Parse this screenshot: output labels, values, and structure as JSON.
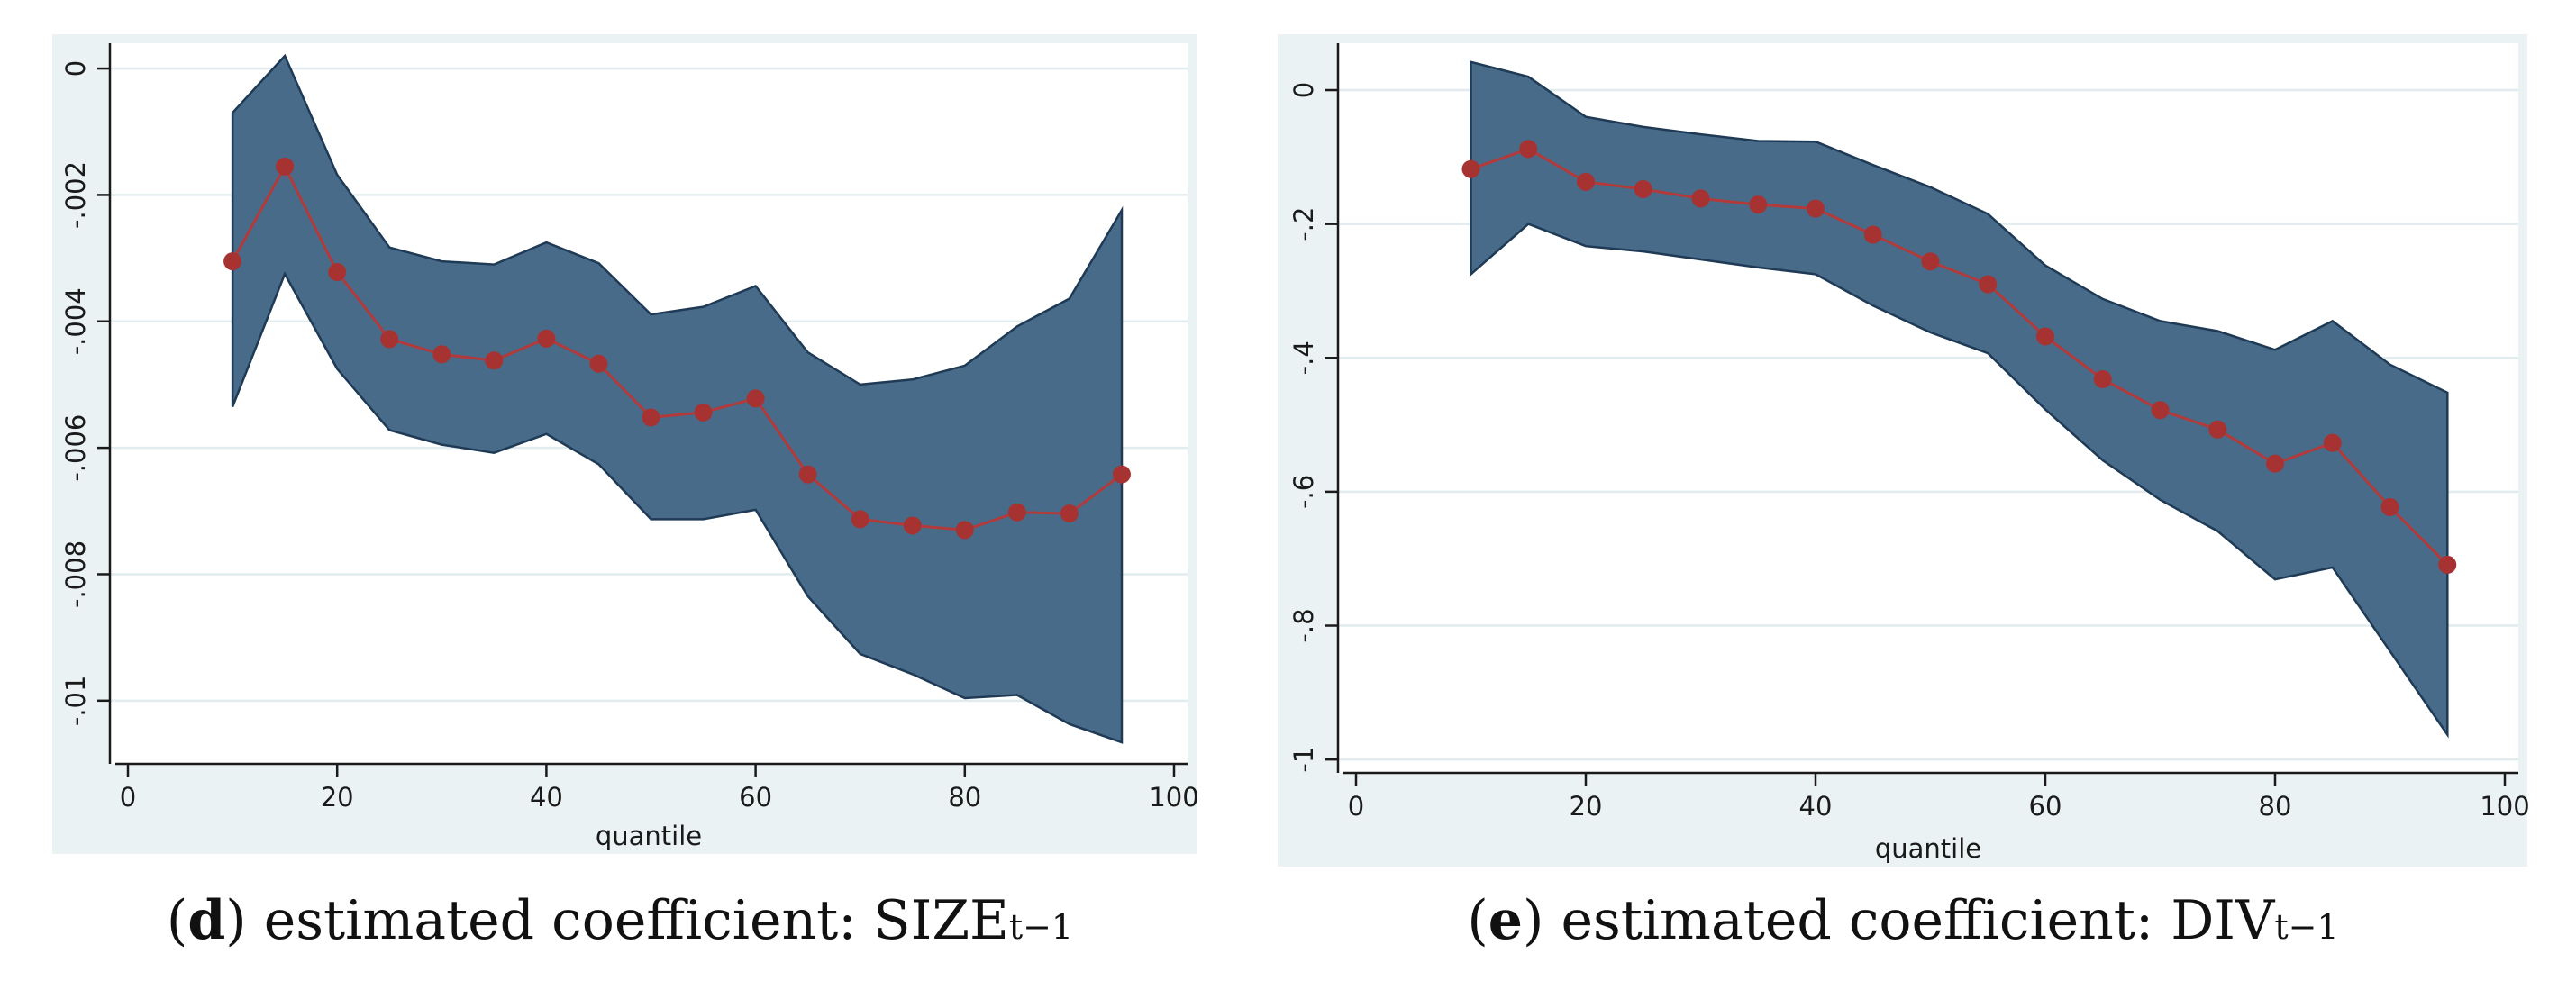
{
  "colors": {
    "panel_bg": "#eaf2f3",
    "plot_bg": "#ffffff",
    "grid": "#e2ecee",
    "band_fill": "#486b8a",
    "band_edge": "#1f3a55",
    "line": "#b33a3a",
    "marker": "#a73232",
    "axis": "#1a1a1a"
  },
  "chart_data": [
    {
      "type": "line",
      "panel": "d",
      "xlabel": "quantile",
      "ylabel": "",
      "xlim": [
        0,
        100
      ],
      "ylim": [
        -0.011,
        0.0004
      ],
      "x_ticks": [
        0,
        20,
        40,
        60,
        80,
        100
      ],
      "x_tick_labels": [
        "0",
        "20",
        "40",
        "60",
        "80",
        "100"
      ],
      "y_ticks": [
        0,
        -0.002,
        -0.004,
        -0.006,
        -0.008,
        -0.01
      ],
      "y_tick_labels": [
        "0",
        "-.002",
        "-.004",
        "-.006",
        "-.008",
        "-.01"
      ],
      "grid": true,
      "caption": {
        "letter": "d",
        "text": " estimated coefficient: SIZE",
        "subscript": "t−1"
      },
      "x": [
        10,
        15,
        20,
        25,
        30,
        35,
        40,
        45,
        50,
        55,
        60,
        65,
        70,
        75,
        80,
        85,
        90,
        95
      ],
      "series": [
        {
          "name": "coefficient",
          "values": [
            -0.00305,
            -0.00155,
            -0.00322,
            -0.00428,
            -0.00452,
            -0.00462,
            -0.00427,
            -0.00467,
            -0.00552,
            -0.00544,
            -0.00522,
            -0.00642,
            -0.00713,
            -0.00723,
            -0.0073,
            -0.00702,
            -0.00704,
            -0.00642
          ]
        },
        {
          "name": "upper bound",
          "values": [
            -0.0007,
            0.0002,
            -0.00168,
            -0.00283,
            -0.00305,
            -0.0031,
            -0.00275,
            -0.00308,
            -0.00389,
            -0.00377,
            -0.00344,
            -0.00449,
            -0.005,
            -0.00492,
            -0.0047,
            -0.00408,
            -0.00364,
            -0.00224
          ]
        },
        {
          "name": "lower bound",
          "values": [
            -0.00535,
            -0.00325,
            -0.00475,
            -0.00572,
            -0.00595,
            -0.00608,
            -0.00578,
            -0.00626,
            -0.00713,
            -0.00713,
            -0.00698,
            -0.00835,
            -0.00926,
            -0.00958,
            -0.00996,
            -0.00991,
            -0.01037,
            -0.01066
          ]
        }
      ]
    },
    {
      "type": "line",
      "panel": "e",
      "xlabel": "quantile",
      "ylabel": "",
      "xlim": [
        0,
        100
      ],
      "ylim": [
        -1.02,
        0.07
      ],
      "x_ticks": [
        0,
        20,
        40,
        60,
        80,
        100
      ],
      "x_tick_labels": [
        "0",
        "20",
        "40",
        "60",
        "80",
        "100"
      ],
      "y_ticks": [
        0,
        -0.2,
        -0.4,
        -0.6,
        -0.8,
        -1
      ],
      "y_tick_labels": [
        "0",
        "-.2",
        "-.4",
        "-.6",
        "-.8",
        "-1"
      ],
      "grid": true,
      "caption": {
        "letter": "e",
        "text": " estimated coefficient: DIV",
        "subscript": "t−1"
      },
      "x": [
        10,
        15,
        20,
        25,
        30,
        35,
        40,
        45,
        50,
        55,
        60,
        65,
        70,
        75,
        80,
        85,
        90,
        95
      ],
      "series": [
        {
          "name": "coefficient",
          "values": [
            -0.118,
            -0.088,
            -0.137,
            -0.148,
            -0.162,
            -0.171,
            -0.177,
            -0.216,
            -0.256,
            -0.29,
            -0.368,
            -0.432,
            -0.478,
            -0.507,
            -0.558,
            -0.527,
            -0.623,
            -0.709
          ]
        },
        {
          "name": "upper bound",
          "values": [
            0.042,
            0.02,
            -0.04,
            -0.055,
            -0.066,
            -0.076,
            -0.077,
            -0.112,
            -0.145,
            -0.185,
            -0.262,
            -0.312,
            -0.345,
            -0.36,
            -0.388,
            -0.345,
            -0.41,
            -0.452
          ]
        },
        {
          "name": "lower bound",
          "values": [
            -0.275,
            -0.2,
            -0.233,
            -0.241,
            -0.253,
            -0.265,
            -0.275,
            -0.322,
            -0.362,
            -0.393,
            -0.477,
            -0.553,
            -0.612,
            -0.659,
            -0.731,
            -0.713,
            -0.838,
            -0.963
          ]
        }
      ]
    }
  ]
}
